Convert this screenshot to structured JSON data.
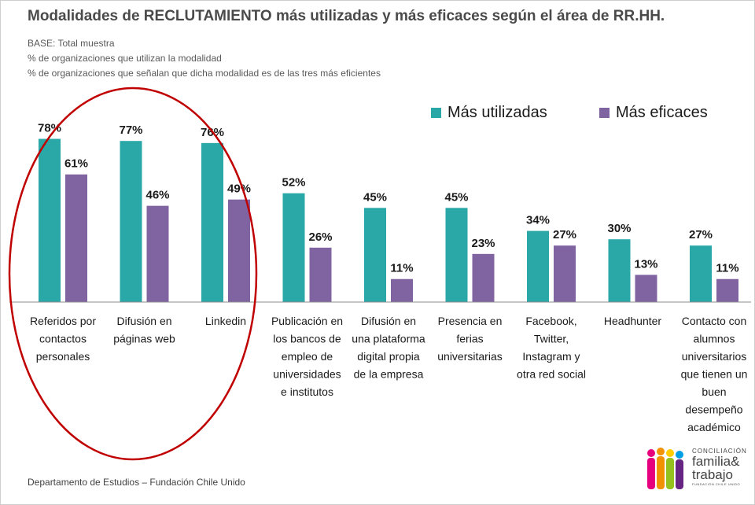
{
  "header": {
    "title": "Modalidades de RECLUTAMIENTO más utilizadas y más eficaces según el área de RR.HH.",
    "base": "BASE:  Total muestra",
    "note1": "%  de organizaciones que utilizan la modalidad",
    "note2": "% de organizaciones que señalan que dicha modalidad es de las tres más eficientes"
  },
  "footer": {
    "text": "Departamento de Estudios – Fundación Chile Unido"
  },
  "logo": {
    "line1": "CONCILIACIÓN",
    "line2": "familia&",
    "line3": "trabajo",
    "line4": "FUNDACIÓN CHILE UNIDO"
  },
  "colors": {
    "utilizadas": "#2aa8a8",
    "eficaces": "#8064a2",
    "highlight": "#c00000"
  },
  "chart_data": {
    "type": "bar",
    "categories": [
      "Referidos por contactos personales",
      "Difusión en páginas web",
      "Linkedin",
      "Publicación en los bancos de empleo de universidades e institutos",
      "Difusión en una plataforma digital propia de la empresa",
      "Presencia en ferias universitarias",
      "Facebook, Twitter, Instagram y otra red social",
      "Headhunter",
      "Contacto con alumnos universitarios que tienen un buen desempeño académico"
    ],
    "category_lines": [
      [
        "Referidos por",
        "contactos",
        "personales"
      ],
      [
        "Difusión en",
        "páginas web"
      ],
      [
        "Linkedin"
      ],
      [
        "Publicación en",
        "los bancos de",
        "empleo de",
        "universidades",
        "e institutos"
      ],
      [
        "Difusión en",
        "una plataforma",
        "digital propia",
        "de la empresa"
      ],
      [
        "Presencia en",
        "ferias",
        "universitarias"
      ],
      [
        "Facebook,",
        "Twitter,",
        "Instagram y",
        "otra red social"
      ],
      [
        "Headhunter"
      ],
      [
        "Contacto con",
        "alumnos",
        "universitarios",
        "que tienen un",
        "buen",
        "desempeño",
        "académico"
      ]
    ],
    "series": [
      {
        "name": "Más utilizadas",
        "values": [
          78,
          77,
          76,
          52,
          45,
          45,
          34,
          30,
          27
        ]
      },
      {
        "name": "Más eficaces",
        "values": [
          61,
          46,
          49,
          26,
          11,
          23,
          27,
          13,
          11
        ]
      }
    ],
    "value_suffix": "%",
    "ylim": [
      0,
      100
    ],
    "grid": false,
    "legend_position": "top-right",
    "highlighted_categories": [
      0,
      1,
      2
    ]
  }
}
